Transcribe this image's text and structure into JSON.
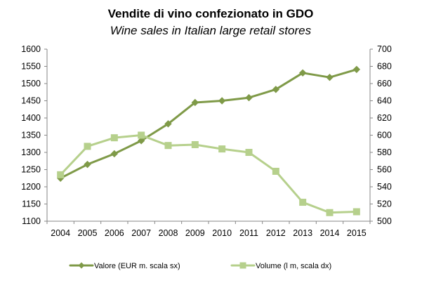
{
  "chart_data": {
    "type": "line",
    "title": "Vendite di vino confezionato in GDO",
    "subtitle": "Wine sales in Italian large retail stores",
    "categories": [
      "2004",
      "2005",
      "2006",
      "2007",
      "2008",
      "2009",
      "2010",
      "2011",
      "2012",
      "2013",
      "2014",
      "2015"
    ],
    "y_left": {
      "min": 1100,
      "max": 1600,
      "step": 50,
      "ticks": [
        "1600",
        "1550",
        "1500",
        "1450",
        "1400",
        "1350",
        "1300",
        "1250",
        "1200",
        "1150",
        "1100"
      ]
    },
    "y_right": {
      "min": 500,
      "max": 700,
      "step": 20,
      "ticks": [
        "700",
        "680",
        "660",
        "640",
        "620",
        "600",
        "580",
        "560",
        "540",
        "520",
        "500"
      ]
    },
    "series": [
      {
        "name": "Valore (EUR m. scala sx)",
        "axis": "left",
        "marker": "diamond",
        "color": "#7f9a48",
        "values": [
          1225,
          1265,
          1296,
          1334,
          1383,
          1445,
          1450,
          1459,
          1483,
          1531,
          1518,
          1541
        ]
      },
      {
        "name": "Volume (l m, scala dx)",
        "axis": "right",
        "marker": "square",
        "color": "#b6d08c",
        "values": [
          554,
          587,
          597,
          600,
          588,
          589,
          584,
          580,
          558,
          522,
          510,
          511
        ]
      }
    ],
    "grid": false,
    "legend": "bottom"
  }
}
